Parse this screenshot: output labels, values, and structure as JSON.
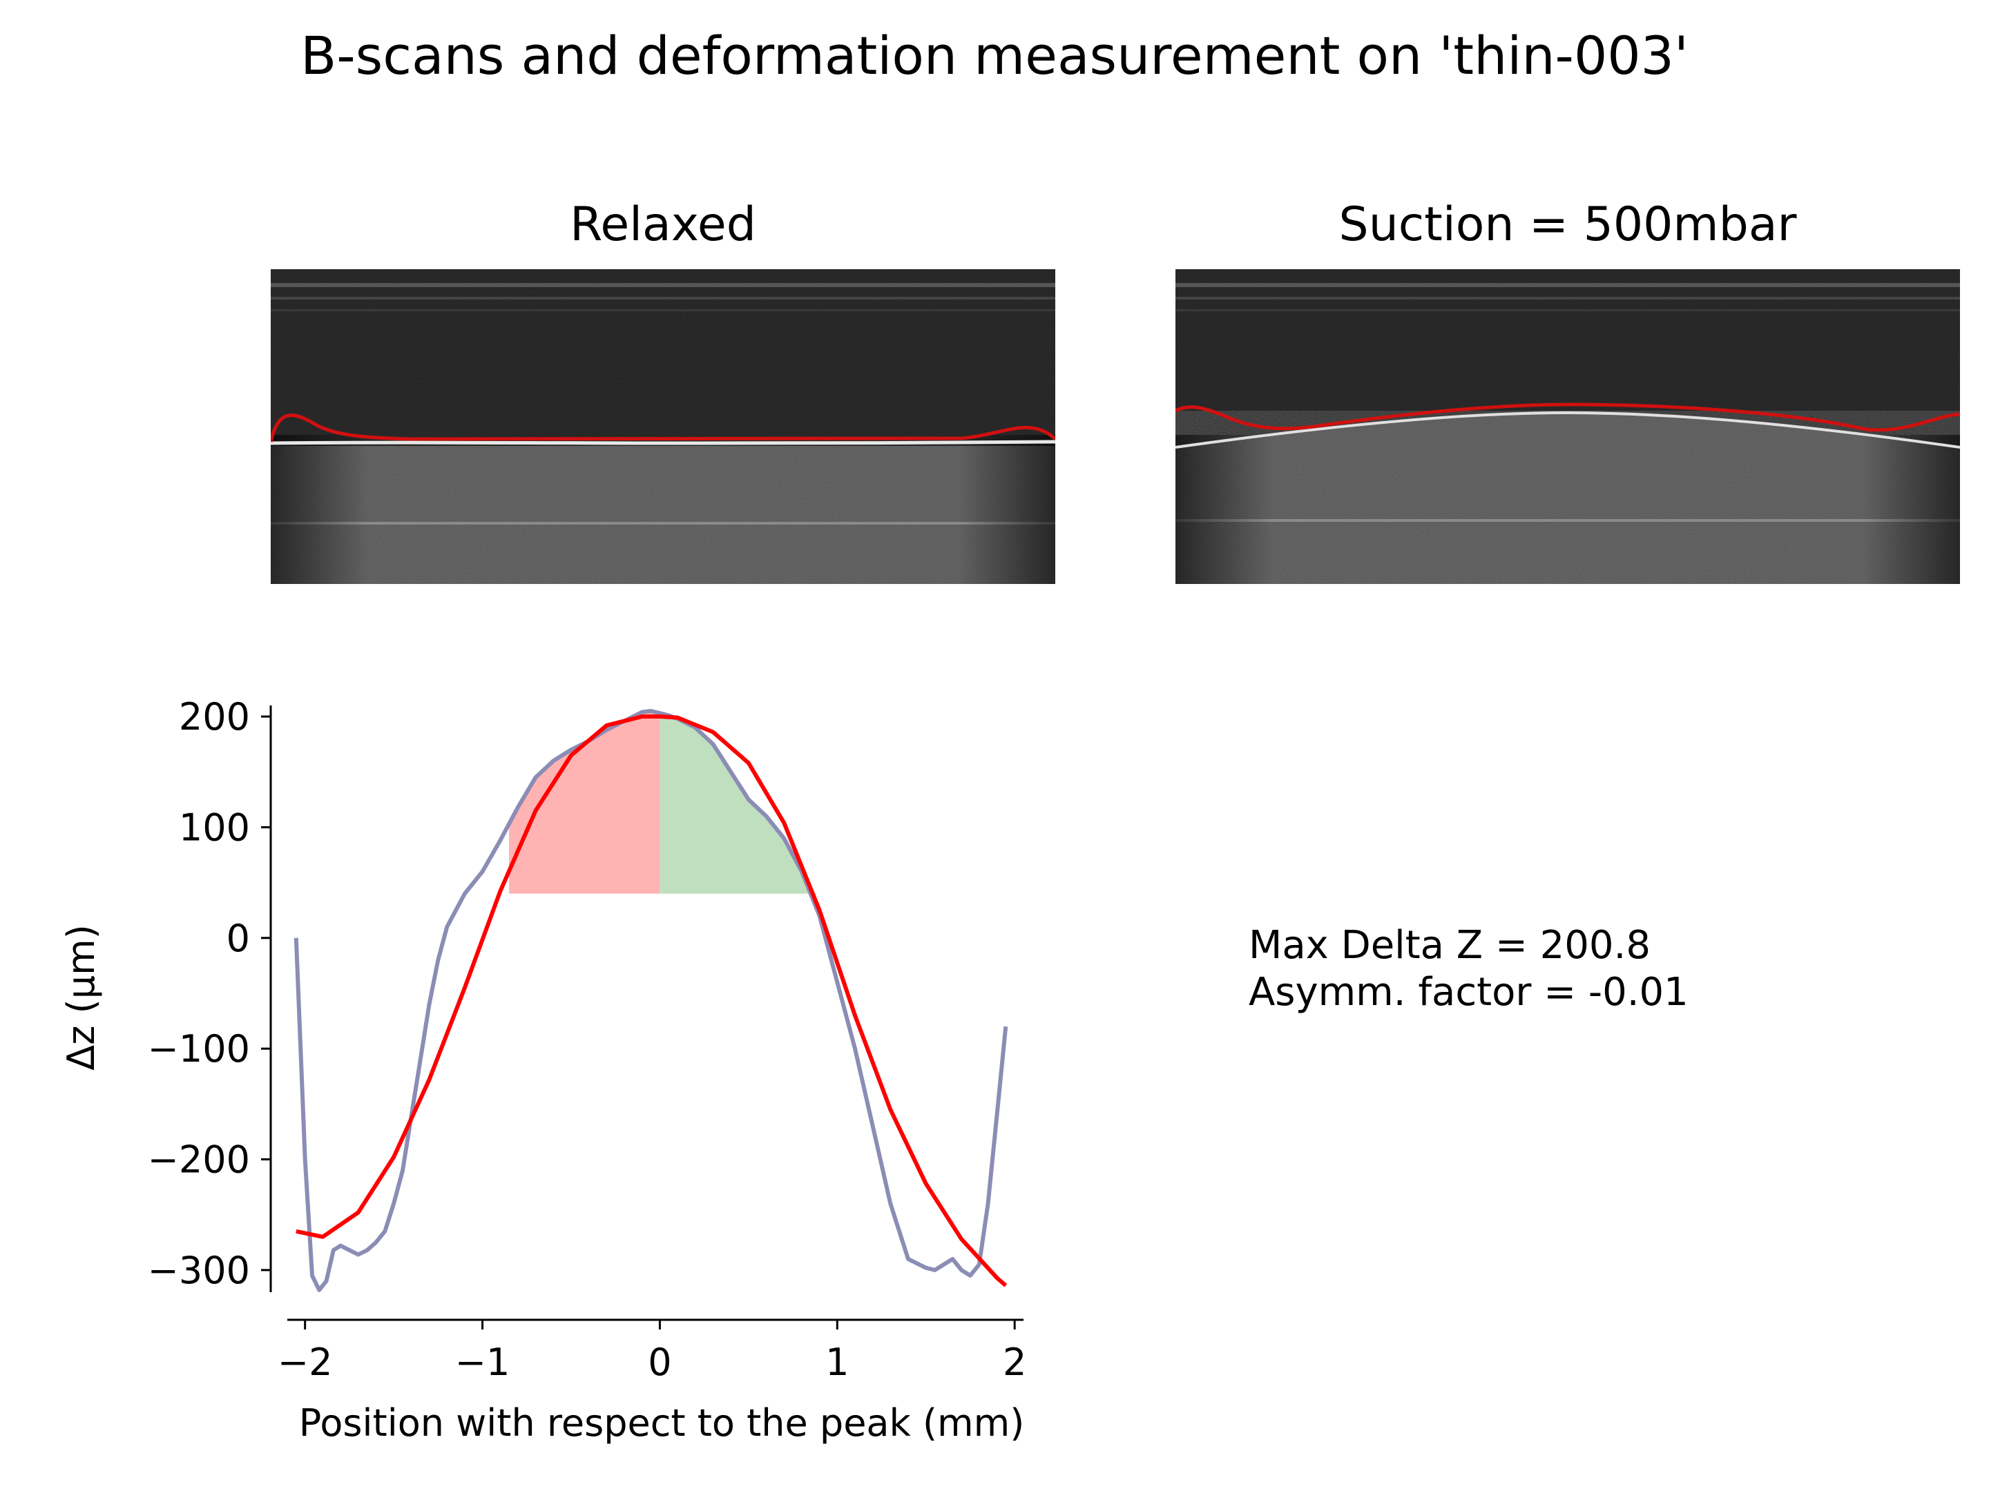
{
  "figure": {
    "title": "B-scans and deformation measurement on 'thin-003'"
  },
  "panels": {
    "relaxed_title": "Relaxed",
    "suction_title": "Suction = 500mbar"
  },
  "annotation": {
    "line1": "Max Delta Z = 200.8",
    "line2": "Asymm. factor = -0.01"
  },
  "colors": {
    "measured": "#8b8db5",
    "fit": "#ff0000",
    "left_fill": "#ffb3b3",
    "right_fill": "#bfdfbf",
    "segmentation": "#d01010"
  },
  "chart_data": {
    "type": "line",
    "xlabel": "Position with respect to the peak (mm)",
    "ylabel": "Δz (μm)",
    "xlim": [
      -2.1,
      2.05
    ],
    "ylim": [
      -320,
      210
    ],
    "xticks": [
      -2,
      -1,
      0,
      1,
      2
    ],
    "xtick_labels": [
      "−2",
      "−1",
      "0",
      "1",
      "2"
    ],
    "yticks": [
      200,
      100,
      0,
      -100,
      -200,
      -300
    ],
    "ytick_labels": [
      "200",
      "100",
      "0",
      "−100",
      "−200",
      "−300"
    ],
    "grid": false,
    "series": [
      {
        "role": "measured",
        "x": [
          -2.05,
          -2.0,
          -1.96,
          -1.92,
          -1.88,
          -1.84,
          -1.8,
          -1.75,
          -1.7,
          -1.65,
          -1.6,
          -1.55,
          -1.5,
          -1.45,
          -1.4,
          -1.35,
          -1.3,
          -1.25,
          -1.2,
          -1.1,
          -1.0,
          -0.9,
          -0.8,
          -0.7,
          -0.6,
          -0.5,
          -0.4,
          -0.3,
          -0.2,
          -0.1,
          -0.05,
          0.0,
          0.05,
          0.1,
          0.2,
          0.3,
          0.4,
          0.5,
          0.6,
          0.7,
          0.8,
          0.9,
          1.0,
          1.1,
          1.2,
          1.3,
          1.4,
          1.5,
          1.55,
          1.6,
          1.65,
          1.7,
          1.75,
          1.8,
          1.85,
          1.9,
          1.95
        ],
        "y": [
          0,
          -200,
          -305,
          -318,
          -310,
          -282,
          -278,
          -282,
          -286,
          -282,
          -275,
          -265,
          -240,
          -210,
          -160,
          -110,
          -60,
          -20,
          10,
          40,
          60,
          88,
          118,
          145,
          160,
          170,
          178,
          188,
          196,
          204,
          205,
          203,
          201,
          198,
          190,
          175,
          150,
          125,
          110,
          90,
          60,
          20,
          -40,
          -100,
          -170,
          -240,
          -290,
          -298,
          -300,
          -295,
          -290,
          -300,
          -305,
          -295,
          -240,
          -160,
          -80
        ]
      },
      {
        "role": "fit",
        "x": [
          -2.05,
          -1.9,
          -1.7,
          -1.5,
          -1.3,
          -1.1,
          -0.9,
          -0.7,
          -0.5,
          -0.3,
          -0.1,
          0.0,
          0.1,
          0.3,
          0.5,
          0.7,
          0.9,
          1.1,
          1.3,
          1.5,
          1.7,
          1.9,
          1.95
        ],
        "y": [
          -265,
          -270,
          -248,
          -198,
          -128,
          -45,
          42,
          115,
          165,
          192,
          200,
          200,
          199,
          186,
          158,
          104,
          25,
          -70,
          -155,
          -222,
          -272,
          -307,
          -314
        ]
      }
    ],
    "fill_regions": [
      {
        "side": "left",
        "x": [
          -0.85,
          0.0
        ],
        "baseline": 40
      },
      {
        "side": "right",
        "x": [
          0.0,
          0.88
        ],
        "baseline": 40
      }
    ]
  }
}
